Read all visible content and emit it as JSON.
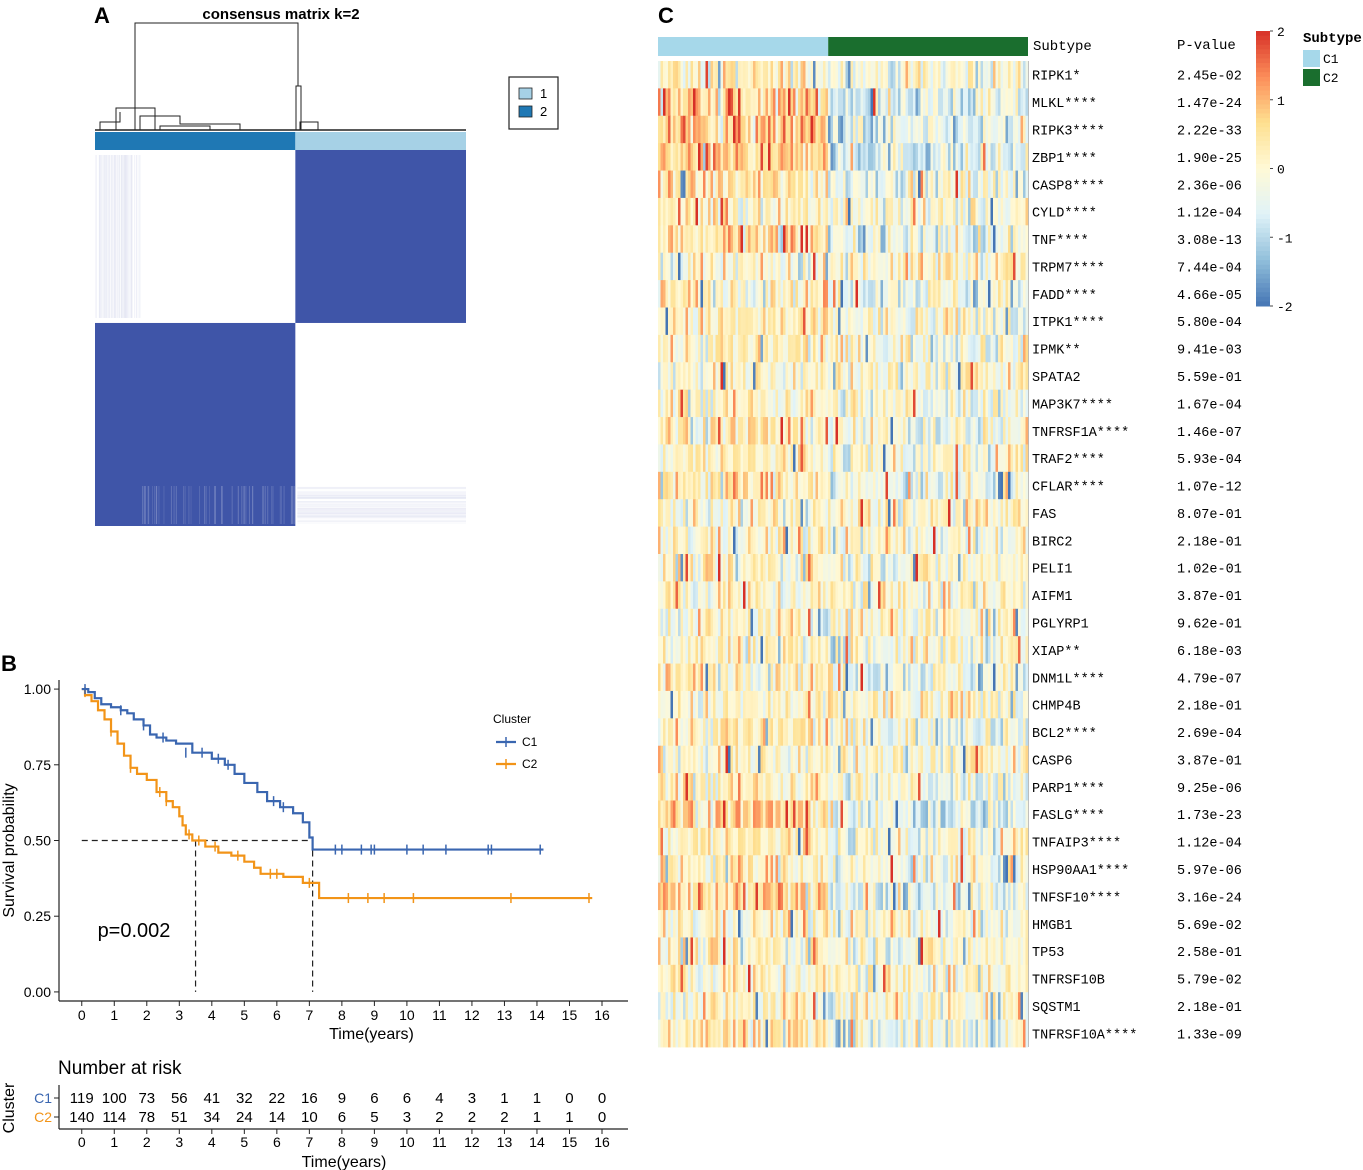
{
  "panels": {
    "A": {
      "label": "A",
      "title": "consensus matrix k=2",
      "legend": [
        {
          "name": "1",
          "color": "#a6d1e6"
        },
        {
          "name": "2",
          "color": "#1f78b4"
        }
      ],
      "colors": {
        "high": "#3f55a8",
        "low": "#ffffff",
        "cluster1": "#a6d1e6",
        "cluster2": "#1f78b4"
      }
    },
    "B": {
      "label": "B",
      "legend_title": "Cluster",
      "pvalue_text": "p=0.002",
      "risk_table_title": "Number at risk",
      "risk_ylabel": "Cluster",
      "risk_xlabel": "Time(years)"
    },
    "C": {
      "label": "C",
      "subtype_header": "Subtype",
      "pvalue_header": "P-value",
      "scale_ticks": [
        "2",
        "1",
        "0",
        "-1",
        "-2"
      ],
      "scale_colors": [
        "#d73027",
        "#fc8d59",
        "#fee090",
        "#fff9d6",
        "#e0f3f8",
        "#91bfdb",
        "#4575b4"
      ],
      "subtype_legend_title": "Subtype",
      "subtype_legend": [
        {
          "name": "C1",
          "color": "#a6d8ea"
        },
        {
          "name": "C2",
          "color": "#1a6e2e"
        }
      ],
      "genes": [
        {
          "name": "RIPK1*",
          "p": "2.45e-02"
        },
        {
          "name": "MLKL****",
          "p": "1.47e-24"
        },
        {
          "name": "RIPK3****",
          "p": "2.22e-33"
        },
        {
          "name": "ZBP1****",
          "p": "1.90e-25"
        },
        {
          "name": "CASP8****",
          "p": "2.36e-06"
        },
        {
          "name": "CYLD****",
          "p": "1.12e-04"
        },
        {
          "name": "TNF****",
          "p": "3.08e-13"
        },
        {
          "name": "TRPM7****",
          "p": "7.44e-04"
        },
        {
          "name": "FADD****",
          "p": "4.66e-05"
        },
        {
          "name": "ITPK1****",
          "p": "5.80e-04"
        },
        {
          "name": "IPMK**",
          "p": "9.41e-03"
        },
        {
          "name": "SPATA2",
          "p": "5.59e-01"
        },
        {
          "name": "MAP3K7****",
          "p": "1.67e-04"
        },
        {
          "name": "TNFRSF1A****",
          "p": "1.46e-07"
        },
        {
          "name": "TRAF2****",
          "p": "5.93e-04"
        },
        {
          "name": "CFLAR****",
          "p": "1.07e-12"
        },
        {
          "name": "FAS",
          "p": "8.07e-01"
        },
        {
          "name": "BIRC2",
          "p": "2.18e-01"
        },
        {
          "name": "PELI1",
          "p": "1.02e-01"
        },
        {
          "name": "AIFM1",
          "p": "3.87e-01"
        },
        {
          "name": "PGLYRP1",
          "p": "9.62e-01"
        },
        {
          "name": "XIAP**",
          "p": "6.18e-03"
        },
        {
          "name": "DNM1L****",
          "p": "4.79e-07"
        },
        {
          "name": "CHMP4B",
          "p": "2.18e-01"
        },
        {
          "name": "BCL2****",
          "p": "2.69e-04"
        },
        {
          "name": "CASP6",
          "p": "3.87e-01"
        },
        {
          "name": "PARP1****",
          "p": "9.25e-06"
        },
        {
          "name": "FASLG****",
          "p": "1.73e-23"
        },
        {
          "name": "TNFAIP3****",
          "p": "1.12e-04"
        },
        {
          "name": "HSP90AA1****",
          "p": "5.97e-06"
        },
        {
          "name": "TNFSF10****",
          "p": "3.16e-24"
        },
        {
          "name": "HMGB1",
          "p": "5.69e-02"
        },
        {
          "name": "TP53",
          "p": "2.58e-01"
        },
        {
          "name": "TNFRSF10B",
          "p": "5.79e-02"
        },
        {
          "name": "SQSTM1",
          "p": "2.18e-01"
        },
        {
          "name": "TNFRSF10A****",
          "p": "1.33e-09"
        }
      ]
    }
  },
  "chart_data": [
    {
      "type": "heatmap",
      "panel": "A",
      "title": "consensus matrix k=2",
      "description_values": {
        "clusters": [
          "1",
          "2"
        ],
        "cluster_fraction": {
          "2": 0.54,
          "1": 0.46
        }
      },
      "legend": [
        "1",
        "2"
      ]
    },
    {
      "type": "line",
      "panel": "B",
      "subtype": "kaplan-meier",
      "xlabel": "Time(years)",
      "ylabel": "Survival probability",
      "xlim": [
        -0.7,
        16.8
      ],
      "ylim": [
        -0.03,
        1.03
      ],
      "xticks": [
        0,
        1,
        2,
        3,
        4,
        5,
        6,
        7,
        8,
        9,
        10,
        11,
        12,
        13,
        14,
        15,
        16
      ],
      "yticks": [
        0.0,
        0.25,
        0.5,
        0.75,
        1.0
      ],
      "ytick_labels": [
        "0.00",
        "0.25",
        "0.50",
        "0.75",
        "1.00"
      ],
      "pvalue": "p=0.002",
      "median_survival": {
        "C1": 7.1,
        "C2": 3.5
      },
      "series": [
        {
          "name": "C1",
          "color": "#3a66b0",
          "steps": [
            [
              0,
              1.0
            ],
            [
              0.2,
              0.99
            ],
            [
              0.4,
              0.97
            ],
            [
              0.6,
              0.95
            ],
            [
              0.9,
              0.94
            ],
            [
              1.2,
              0.93
            ],
            [
              1.4,
              0.92
            ],
            [
              1.6,
              0.9
            ],
            [
              1.9,
              0.88
            ],
            [
              2.1,
              0.85
            ],
            [
              2.3,
              0.84
            ],
            [
              2.6,
              0.83
            ],
            [
              2.9,
              0.82
            ],
            [
              3.4,
              0.79
            ],
            [
              4.0,
              0.77
            ],
            [
              4.4,
              0.75
            ],
            [
              4.7,
              0.72
            ],
            [
              5.0,
              0.69
            ],
            [
              5.4,
              0.66
            ],
            [
              5.7,
              0.63
            ],
            [
              6.1,
              0.61
            ],
            [
              6.5,
              0.59
            ],
            [
              6.8,
              0.56
            ],
            [
              7.0,
              0.51
            ],
            [
              7.1,
              0.47
            ],
            [
              14.2,
              0.47
            ]
          ],
          "censors": [
            [
              0.1,
              1.0
            ],
            [
              1.2,
              0.93
            ],
            [
              1.9,
              0.88
            ],
            [
              2.5,
              0.84
            ],
            [
              3.2,
              0.79
            ],
            [
              3.7,
              0.79
            ],
            [
              4.2,
              0.77
            ],
            [
              4.5,
              0.75
            ],
            [
              5.9,
              0.63
            ],
            [
              6.2,
              0.61
            ],
            [
              7.8,
              0.47
            ],
            [
              8.0,
              0.47
            ],
            [
              8.6,
              0.47
            ],
            [
              8.9,
              0.47
            ],
            [
              9.0,
              0.47
            ],
            [
              10.0,
              0.47
            ],
            [
              10.5,
              0.47
            ],
            [
              11.2,
              0.47
            ],
            [
              12.5,
              0.47
            ],
            [
              12.6,
              0.47
            ],
            [
              14.1,
              0.47
            ]
          ],
          "at_risk": [
            119,
            100,
            73,
            56,
            41,
            32,
            22,
            16,
            9,
            6,
            6,
            4,
            3,
            1,
            1,
            0,
            0
          ]
        },
        {
          "name": "C2",
          "color": "#f29418",
          "steps": [
            [
              0,
              1.0
            ],
            [
              0.1,
              0.98
            ],
            [
              0.3,
              0.96
            ],
            [
              0.5,
              0.93
            ],
            [
              0.7,
              0.9
            ],
            [
              0.9,
              0.86
            ],
            [
              1.1,
              0.82
            ],
            [
              1.3,
              0.78
            ],
            [
              1.5,
              0.74
            ],
            [
              1.7,
              0.72
            ],
            [
              2.0,
              0.7
            ],
            [
              2.3,
              0.66
            ],
            [
              2.6,
              0.63
            ],
            [
              2.8,
              0.61
            ],
            [
              3.0,
              0.58
            ],
            [
              3.1,
              0.55
            ],
            [
              3.2,
              0.52
            ],
            [
              3.4,
              0.5
            ],
            [
              3.8,
              0.48
            ],
            [
              4.2,
              0.46
            ],
            [
              4.6,
              0.45
            ],
            [
              5.0,
              0.43
            ],
            [
              5.3,
              0.41
            ],
            [
              5.5,
              0.39
            ],
            [
              6.2,
              0.38
            ],
            [
              6.8,
              0.36
            ],
            [
              7.3,
              0.31
            ],
            [
              15.7,
              0.31
            ]
          ],
          "censors": [
            [
              0.1,
              0.99
            ],
            [
              0.9,
              0.86
            ],
            [
              1.5,
              0.74
            ],
            [
              2.4,
              0.66
            ],
            [
              2.6,
              0.63
            ],
            [
              3.3,
              0.52
            ],
            [
              3.6,
              0.5
            ],
            [
              4.1,
              0.48
            ],
            [
              4.8,
              0.45
            ],
            [
              5.8,
              0.39
            ],
            [
              6.0,
              0.39
            ],
            [
              7.0,
              0.36
            ],
            [
              8.2,
              0.31
            ],
            [
              8.8,
              0.31
            ],
            [
              9.3,
              0.31
            ],
            [
              10.2,
              0.31
            ],
            [
              13.2,
              0.31
            ],
            [
              15.6,
              0.31
            ]
          ],
          "at_risk": [
            140,
            114,
            78,
            51,
            34,
            24,
            14,
            10,
            6,
            5,
            3,
            2,
            2,
            2,
            1,
            1,
            0
          ]
        }
      ]
    },
    {
      "type": "heatmap",
      "panel": "C",
      "color_scale": {
        "min": -2,
        "max": 2,
        "ticks": [
          2,
          1,
          0,
          -1,
          -2
        ]
      },
      "annotation": {
        "name": "Subtype",
        "groups": [
          "C1",
          "C2"
        ],
        "fraction": {
          "C1": 0.46,
          "C2": 0.54
        }
      },
      "rows": [
        "RIPK1*",
        "MLKL****",
        "RIPK3****",
        "ZBP1****",
        "CASP8****",
        "CYLD****",
        "TNF****",
        "TRPM7****",
        "FADD****",
        "ITPK1****",
        "IPMK**",
        "SPATA2",
        "MAP3K7****",
        "TNFRSF1A****",
        "TRAF2****",
        "CFLAR****",
        "FAS",
        "BIRC2",
        "PELI1",
        "AIFM1",
        "PGLYRP1",
        "XIAP**",
        "DNM1L****",
        "CHMP4B",
        "BCL2****",
        "CASP6",
        "PARP1****",
        "FASLG****",
        "TNFAIP3****",
        "HSP90AA1****",
        "TNFSF10****",
        "HMGB1",
        "TP53",
        "TNFRSF10B",
        "SQSTM1",
        "TNFRSF10A****"
      ],
      "group_bias_C1_minus_C2": [
        0.2,
        1.2,
        1.4,
        1.3,
        0.6,
        0.4,
        0.9,
        -0.3,
        0.5,
        0.3,
        0.2,
        0.0,
        0.3,
        0.5,
        0.3,
        0.8,
        0.0,
        0.1,
        0.1,
        0.0,
        0.0,
        0.2,
        0.6,
        -0.1,
        0.4,
        0.0,
        0.5,
        1.2,
        0.4,
        0.5,
        1.3,
        0.1,
        0.1,
        0.1,
        0.1,
        0.7
      ]
    }
  ]
}
